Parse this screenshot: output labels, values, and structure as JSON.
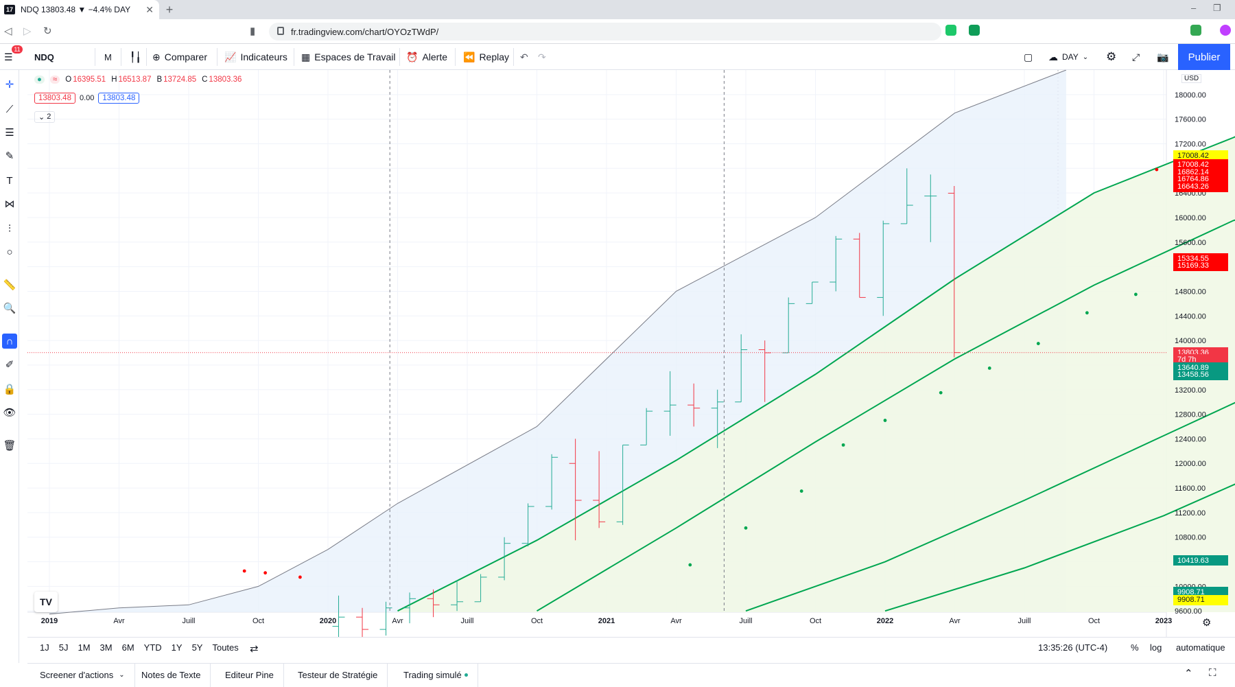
{
  "browser": {
    "tab_title": "NDQ 13803.48 ▼ −4.4% DAY",
    "favicon_text": "17",
    "url": "fr.tradingview.com/chart/OYOzTWdP/",
    "icons": [
      "back-icon",
      "forward-icon",
      "reload-icon",
      "bookmark-icon",
      "extension-icon",
      "profile-icon"
    ]
  },
  "toolbar": {
    "menu_badge": "11",
    "symbol": "NDQ",
    "interval": "M",
    "compare_label": "Comparer",
    "indicators_label": "Indicateurs",
    "workspaces_label": "Espaces de Travail",
    "alert_label": "Alerte",
    "replay_label": "Replay",
    "session_label": "DAY",
    "publish_label": "Publier"
  },
  "legend": {
    "open_label": "O",
    "open": "16395.51",
    "high_label": "H",
    "high": "16513.87",
    "low_label": "B",
    "low": "13724.85",
    "close_label": "C",
    "close": "13803.36",
    "bid": "13803.48",
    "spread": "0.00",
    "ask": "13803.48",
    "collapse_count": "2"
  },
  "chart_data": {
    "type": "bar",
    "currency": "USD",
    "time_axis": [
      "2019",
      "Avr",
      "Juill",
      "Oct",
      "2020",
      "Avr",
      "Juill",
      "Oct",
      "2021",
      "Avr",
      "Juill",
      "Oct",
      "2022",
      "Avr",
      "Juill",
      "Oct",
      "2023"
    ],
    "y_ticks": [
      9600,
      10000,
      10400,
      10800,
      11200,
      11600,
      12000,
      12400,
      12800,
      13200,
      13600,
      14000,
      14400,
      14800,
      15200,
      15600,
      16000,
      16400,
      16800,
      17200,
      17600,
      18000
    ],
    "ylim": [
      9580,
      18400
    ],
    "ohlc": [
      {
        "t": 0,
        "o": 9350,
        "h": 9850,
        "l": 9100,
        "c": 9500
      },
      {
        "t": 1,
        "o": 9500,
        "h": 9650,
        "l": 9150,
        "c": 9300
      },
      {
        "t": 2,
        "o": 9300,
        "h": 9750,
        "l": 9200,
        "c": 9650
      },
      {
        "t": 3,
        "o": 9650,
        "h": 9900,
        "l": 9400,
        "c": 9800
      },
      {
        "t": 4,
        "o": 9800,
        "h": 9950,
        "l": 9500,
        "c": 9700
      },
      {
        "t": 5,
        "o": 9700,
        "h": 10100,
        "l": 9600,
        "c": 9750
      },
      {
        "t": 6,
        "o": 9750,
        "h": 10200,
        "l": 9750,
        "c": 10150
      },
      {
        "t": 7,
        "o": 10150,
        "h": 10800,
        "l": 10100,
        "c": 10700
      },
      {
        "t": 8,
        "o": 10700,
        "h": 11350,
        "l": 10650,
        "c": 11300
      },
      {
        "t": 9,
        "o": 11300,
        "h": 12150,
        "l": 11250,
        "c": 12100
      },
      {
        "t": 10,
        "o": 12000,
        "h": 12400,
        "l": 10750,
        "c": 11400
      },
      {
        "t": 11,
        "o": 11400,
        "h": 12200,
        "l": 10950,
        "c": 11050
      },
      {
        "t": 12,
        "o": 11050,
        "h": 12300,
        "l": 11000,
        "c": 12300
      },
      {
        "t": 13,
        "o": 12300,
        "h": 12900,
        "l": 12300,
        "c": 12850
      },
      {
        "t": 14,
        "o": 12850,
        "h": 13500,
        "l": 12450,
        "c": 12950
      },
      {
        "t": 15,
        "o": 12950,
        "h": 13300,
        "l": 12600,
        "c": 12900
      },
      {
        "t": 16,
        "o": 12900,
        "h": 13200,
        "l": 12250,
        "c": 13000
      },
      {
        "t": 17,
        "o": 13000,
        "h": 14100,
        "l": 13000,
        "c": 13850
      },
      {
        "t": 18,
        "o": 13850,
        "h": 14000,
        "l": 13000,
        "c": 13800
      },
      {
        "t": 19,
        "o": 13800,
        "h": 14700,
        "l": 13800,
        "c": 14600
      },
      {
        "t": 20,
        "o": 14600,
        "h": 14950,
        "l": 14600,
        "c": 14950
      },
      {
        "t": 21,
        "o": 14950,
        "h": 15700,
        "l": 14800,
        "c": 15650
      },
      {
        "t": 22,
        "o": 15650,
        "h": 15750,
        "l": 14700,
        "c": 14700
      },
      {
        "t": 23,
        "o": 14700,
        "h": 15950,
        "l": 14400,
        "c": 15900
      },
      {
        "t": 24,
        "o": 15900,
        "h": 16800,
        "l": 15900,
        "c": 16200
      },
      {
        "t": 25,
        "o": 16350,
        "h": 16700,
        "l": 15600,
        "c": 16350
      },
      {
        "t": 26,
        "o": 16395.51,
        "h": 16513.87,
        "l": 13724.85,
        "c": 13803.36
      }
    ],
    "series": [
      {
        "name": "upper",
        "points": [
          [
            14.6,
            18400
          ],
          [
            13,
            17700
          ],
          [
            11,
            16000
          ],
          [
            9,
            14800
          ],
          [
            7,
            12600
          ],
          [
            5,
            11350
          ],
          [
            4,
            10600
          ],
          [
            3,
            10000
          ],
          [
            2,
            9700
          ],
          [
            1,
            9650
          ],
          [
            0,
            9550
          ]
        ]
      },
      {
        "name": "band-top",
        "points": [
          [
            5,
            9600
          ],
          [
            7,
            10750
          ],
          [
            9,
            12050
          ],
          [
            11,
            13450
          ],
          [
            13,
            15000
          ],
          [
            15,
            16400
          ],
          [
            17,
            17300
          ],
          [
            18,
            17800
          ],
          [
            19,
            18000
          ],
          [
            20,
            17600
          ],
          [
            21,
            17250
          ]
        ]
      },
      {
        "name": "band-mid",
        "points": [
          [
            7,
            9600
          ],
          [
            9,
            10950
          ],
          [
            11,
            12350
          ],
          [
            13,
            13700
          ],
          [
            15,
            14900
          ],
          [
            17,
            15950
          ],
          [
            19,
            16600
          ],
          [
            20,
            16500
          ],
          [
            21,
            16200
          ]
        ]
      },
      {
        "name": "band-low",
        "points": [
          [
            10,
            9600
          ],
          [
            12,
            10400
          ],
          [
            14,
            11400
          ],
          [
            16,
            12450
          ],
          [
            18,
            13500
          ],
          [
            19,
            13850
          ],
          [
            20,
            14050
          ],
          [
            21,
            14150
          ]
        ]
      },
      {
        "name": "lower",
        "points": [
          [
            12,
            9600
          ],
          [
            14,
            10300
          ],
          [
            16,
            11150
          ],
          [
            18,
            12150
          ],
          [
            19,
            12700
          ],
          [
            20,
            12900
          ],
          [
            21,
            12800
          ]
        ]
      }
    ],
    "price_tags": [
      {
        "value": "17008.42",
        "bg": "#ffff00",
        "fg": "#131722",
        "y": 17008.42
      },
      {
        "value": "17008.42",
        "bg": "#ff0000",
        "fg": "#ffffff",
        "y": 16860
      },
      {
        "value": "16862.14",
        "bg": "#ff0000",
        "fg": "#ffffff",
        "y": 16740
      },
      {
        "value": "16764.86",
        "bg": "#ff0000",
        "fg": "#ffffff",
        "y": 16620
      },
      {
        "value": "16643.26",
        "bg": "#ff0000",
        "fg": "#ffffff",
        "y": 16500
      },
      {
        "value": "15334.55",
        "bg": "#ff0000",
        "fg": "#ffffff",
        "y": 15334.55
      },
      {
        "value": "15169.33",
        "bg": "#ff0000",
        "fg": "#ffffff",
        "y": 15215
      },
      {
        "value": "13803.36",
        "bg": "#f23645",
        "fg": "#ffffff",
        "y": 13803.36
      },
      {
        "value": "7d 7h",
        "bg": "#f23645",
        "fg": "#ffffff",
        "y": 13690
      },
      {
        "value": "13640.89",
        "bg": "#089981",
        "fg": "#ffffff",
        "y": 13560
      },
      {
        "value": "13458.56",
        "bg": "#089981",
        "fg": "#ffffff",
        "y": 13440
      },
      {
        "value": "10419.63",
        "bg": "#089981",
        "fg": "#ffffff",
        "y": 10419.63
      },
      {
        "value": "9908.71",
        "bg": "#089981",
        "fg": "#ffffff",
        "y": 9908.71
      },
      {
        "value": "9908.71",
        "bg": "#ffff00",
        "fg": "#131722",
        "y": 9780
      }
    ]
  },
  "ranges": [
    "1J",
    "5J",
    "1M",
    "3M",
    "6M",
    "YTD",
    "1Y",
    "5Y",
    "Toutes"
  ],
  "status": {
    "time": "13:35:26 (UTC-4)",
    "percent": "%",
    "log": "log",
    "auto": "automatique"
  },
  "panels": [
    "Screener d'actions",
    "Notes de Texte",
    "Editeur Pine",
    "Testeur de Stratégie",
    "Trading simulé"
  ],
  "colors": {
    "accent": "#2962ff",
    "up": "#22ab94",
    "down": "#f23645",
    "band": "#00a650"
  }
}
